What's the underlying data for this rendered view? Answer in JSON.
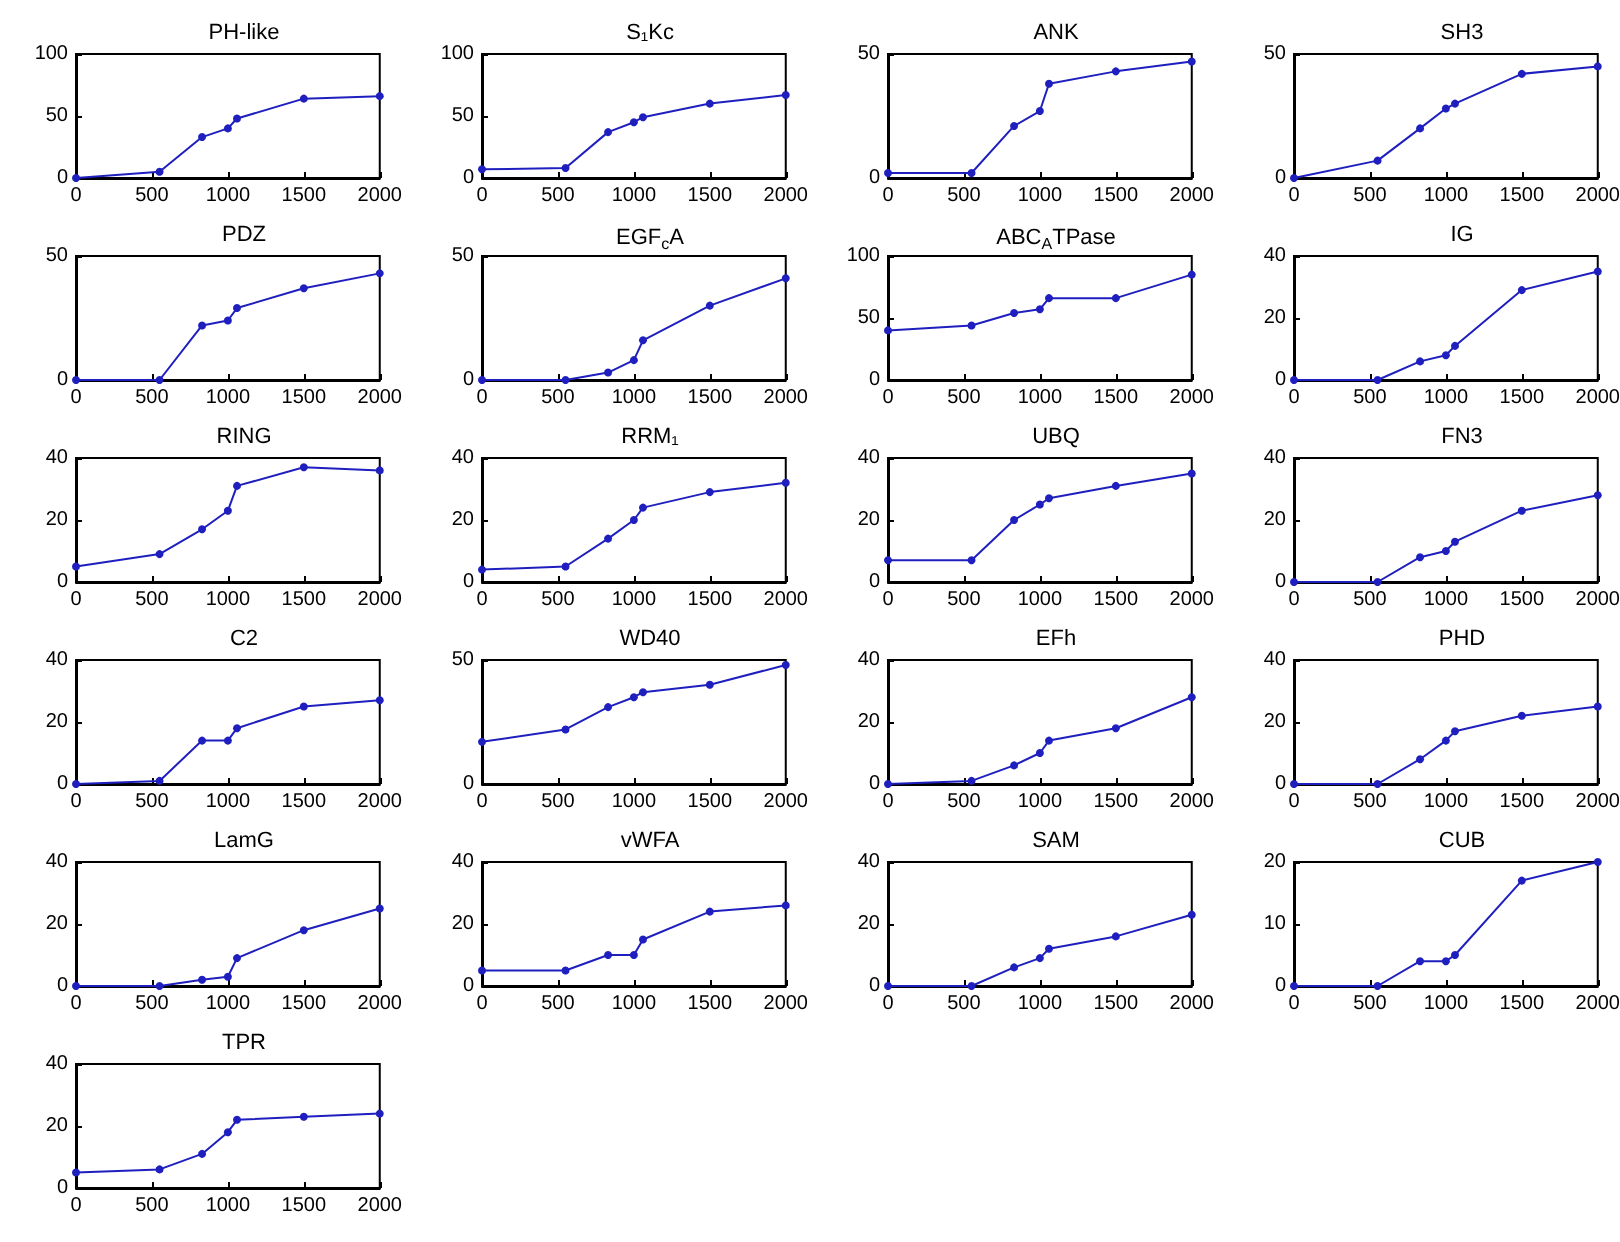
{
  "chart_data": [
    {
      "type": "line",
      "title": "PH-like",
      "x": [
        0,
        550,
        830,
        1000,
        1060,
        1500,
        2000
      ],
      "series": [
        {
          "color": "#1f1fbf",
          "values": [
            0,
            5,
            33,
            40,
            48,
            64,
            66
          ]
        }
      ],
      "xlim": [
        0,
        2000
      ],
      "xticks": [
        0,
        500,
        1000,
        1500,
        2000
      ],
      "ylim": [
        0,
        100
      ],
      "yticks": [
        0,
        50,
        100
      ],
      "marker": "circle",
      "line_style": "solid"
    },
    {
      "type": "line",
      "title": "S₁Kc",
      "x": [
        0,
        550,
        830,
        1000,
        1060,
        1500,
        2000
      ],
      "series": [
        {
          "color": "#1f1fbf",
          "values": [
            7,
            8,
            37,
            45,
            49,
            60,
            67
          ]
        }
      ],
      "xlim": [
        0,
        2000
      ],
      "xticks": [
        0,
        500,
        1000,
        1500,
        2000
      ],
      "ylim": [
        0,
        100
      ],
      "yticks": [
        0,
        50,
        100
      ],
      "marker": "circle",
      "line_style": "solid"
    },
    {
      "type": "line",
      "title": "ANK",
      "x": [
        0,
        550,
        830,
        1000,
        1060,
        1500,
        2000
      ],
      "series": [
        {
          "color": "#1f1fbf",
          "values": [
            2,
            2,
            21,
            27,
            38,
            43,
            47
          ]
        }
      ],
      "xlim": [
        0,
        2000
      ],
      "xticks": [
        0,
        500,
        1000,
        1500,
        2000
      ],
      "ylim": [
        0,
        50
      ],
      "yticks": [
        0,
        50
      ],
      "marker": "circle",
      "line_style": "solid"
    },
    {
      "type": "line",
      "title": "SH3",
      "x": [
        0,
        550,
        830,
        1000,
        1060,
        1500,
        2000
      ],
      "series": [
        {
          "color": "#1f1fbf",
          "values": [
            0,
            7,
            20,
            28,
            30,
            42,
            45
          ]
        }
      ],
      "xlim": [
        0,
        2000
      ],
      "xticks": [
        0,
        500,
        1000,
        1500,
        2000
      ],
      "ylim": [
        0,
        50
      ],
      "yticks": [
        0,
        50
      ],
      "marker": "circle",
      "line_style": "solid"
    },
    {
      "type": "line",
      "title": "PDZ",
      "x": [
        0,
        550,
        830,
        1000,
        1060,
        1500,
        2000
      ],
      "series": [
        {
          "color": "#1f1fbf",
          "values": [
            0,
            0,
            22,
            24,
            29,
            37,
            43
          ]
        }
      ],
      "xlim": [
        0,
        2000
      ],
      "xticks": [
        0,
        500,
        1000,
        1500,
        2000
      ],
      "ylim": [
        0,
        50
      ],
      "yticks": [
        0,
        50
      ],
      "marker": "circle",
      "line_style": "solid"
    },
    {
      "type": "line",
      "title": "EGF$_{c}$A",
      "x": [
        0,
        550,
        830,
        1000,
        1060,
        1500,
        2000
      ],
      "series": [
        {
          "color": "#1f1fbf",
          "values": [
            0,
            0,
            3,
            8,
            16,
            30,
            41
          ]
        }
      ],
      "xlim": [
        0,
        2000
      ],
      "xticks": [
        0,
        500,
        1000,
        1500,
        2000
      ],
      "ylim": [
        0,
        50
      ],
      "yticks": [
        0,
        50
      ],
      "marker": "circle",
      "line_style": "solid"
    },
    {
      "type": "line",
      "title": "ABC$_{A}$TPase",
      "x": [
        0,
        550,
        830,
        1000,
        1060,
        1500,
        2000
      ],
      "series": [
        {
          "color": "#1f1fbf",
          "values": [
            40,
            44,
            54,
            57,
            66,
            66,
            85
          ]
        }
      ],
      "xlim": [
        0,
        2000
      ],
      "xticks": [
        0,
        500,
        1000,
        1500,
        2000
      ],
      "ylim": [
        0,
        100
      ],
      "yticks": [
        0,
        50,
        100
      ],
      "marker": "circle",
      "line_style": "solid"
    },
    {
      "type": "line",
      "title": "IG",
      "x": [
        0,
        550,
        830,
        1000,
        1060,
        1500,
        2000
      ],
      "series": [
        {
          "color": "#1f1fbf",
          "values": [
            0,
            0,
            6,
            8,
            11,
            29,
            35
          ]
        }
      ],
      "xlim": [
        0,
        2000
      ],
      "xticks": [
        0,
        500,
        1000,
        1500,
        2000
      ],
      "ylim": [
        0,
        40
      ],
      "yticks": [
        0,
        20,
        40
      ],
      "marker": "circle",
      "line_style": "solid"
    },
    {
      "type": "line",
      "title": "RING",
      "x": [
        0,
        550,
        830,
        1000,
        1060,
        1500,
        2000
      ],
      "series": [
        {
          "color": "#1f1fbf",
          "values": [
            5,
            9,
            17,
            23,
            31,
            37,
            36
          ]
        }
      ],
      "xlim": [
        0,
        2000
      ],
      "xticks": [
        0,
        500,
        1000,
        1500,
        2000
      ],
      "ylim": [
        0,
        40
      ],
      "yticks": [
        0,
        20,
        40
      ],
      "marker": "circle",
      "line_style": "solid"
    },
    {
      "type": "line",
      "title": "RRM₁",
      "x": [
        0,
        550,
        830,
        1000,
        1060,
        1500,
        2000
      ],
      "series": [
        {
          "color": "#1f1fbf",
          "values": [
            4,
            5,
            14,
            20,
            24,
            29,
            32
          ]
        }
      ],
      "xlim": [
        0,
        2000
      ],
      "xticks": [
        0,
        500,
        1000,
        1500,
        2000
      ],
      "ylim": [
        0,
        40
      ],
      "yticks": [
        0,
        20,
        40
      ],
      "marker": "circle",
      "line_style": "solid"
    },
    {
      "type": "line",
      "title": "UBQ",
      "x": [
        0,
        550,
        830,
        1000,
        1060,
        1500,
        2000
      ],
      "series": [
        {
          "color": "#1f1fbf",
          "values": [
            7,
            7,
            20,
            25,
            27,
            31,
            35
          ]
        }
      ],
      "xlim": [
        0,
        2000
      ],
      "xticks": [
        0,
        500,
        1000,
        1500,
        2000
      ],
      "ylim": [
        0,
        40
      ],
      "yticks": [
        0,
        20,
        40
      ],
      "marker": "circle",
      "line_style": "solid"
    },
    {
      "type": "line",
      "title": "FN3",
      "x": [
        0,
        550,
        830,
        1000,
        1060,
        1500,
        2000
      ],
      "series": [
        {
          "color": "#1f1fbf",
          "values": [
            0,
            0,
            8,
            10,
            13,
            23,
            28
          ]
        }
      ],
      "xlim": [
        0,
        2000
      ],
      "xticks": [
        0,
        500,
        1000,
        1500,
        2000
      ],
      "ylim": [
        0,
        40
      ],
      "yticks": [
        0,
        20,
        40
      ],
      "marker": "circle",
      "line_style": "solid"
    },
    {
      "type": "line",
      "title": "C2",
      "x": [
        0,
        550,
        830,
        1000,
        1060,
        1500,
        2000
      ],
      "series": [
        {
          "color": "#1f1fbf",
          "values": [
            0,
            1,
            14,
            14,
            18,
            25,
            27
          ]
        }
      ],
      "xlim": [
        0,
        2000
      ],
      "xticks": [
        0,
        500,
        1000,
        1500,
        2000
      ],
      "ylim": [
        0,
        40
      ],
      "yticks": [
        0,
        20,
        40
      ],
      "marker": "circle",
      "line_style": "solid"
    },
    {
      "type": "line",
      "title": "WD40",
      "x": [
        0,
        550,
        830,
        1000,
        1060,
        1500,
        2000
      ],
      "series": [
        {
          "color": "#1f1fbf",
          "values": [
            17,
            22,
            31,
            35,
            37,
            40,
            48
          ]
        }
      ],
      "xlim": [
        0,
        2000
      ],
      "xticks": [
        0,
        500,
        1000,
        1500,
        2000
      ],
      "ylim": [
        0,
        50
      ],
      "yticks": [
        0,
        50
      ],
      "marker": "circle",
      "line_style": "solid"
    },
    {
      "type": "line",
      "title": "EFh",
      "x": [
        0,
        550,
        830,
        1000,
        1060,
        1500,
        2000
      ],
      "series": [
        {
          "color": "#1f1fbf",
          "values": [
            0,
            1,
            6,
            10,
            14,
            18,
            28
          ]
        }
      ],
      "xlim": [
        0,
        2000
      ],
      "xticks": [
        0,
        500,
        1000,
        1500,
        2000
      ],
      "ylim": [
        0,
        40
      ],
      "yticks": [
        0,
        20,
        40
      ],
      "marker": "circle",
      "line_style": "solid"
    },
    {
      "type": "line",
      "title": "PHD",
      "x": [
        0,
        550,
        830,
        1000,
        1060,
        1500,
        2000
      ],
      "series": [
        {
          "color": "#1f1fbf",
          "values": [
            0,
            0,
            8,
            14,
            17,
            22,
            25
          ]
        }
      ],
      "xlim": [
        0,
        2000
      ],
      "xticks": [
        0,
        500,
        1000,
        1500,
        2000
      ],
      "ylim": [
        0,
        40
      ],
      "yticks": [
        0,
        20,
        40
      ],
      "marker": "circle",
      "line_style": "solid"
    },
    {
      "type": "line",
      "title": "LamG",
      "x": [
        0,
        550,
        830,
        1000,
        1060,
        1500,
        2000
      ],
      "series": [
        {
          "color": "#1f1fbf",
          "values": [
            0,
            0,
            2,
            3,
            9,
            18,
            25
          ]
        }
      ],
      "xlim": [
        0,
        2000
      ],
      "xticks": [
        0,
        500,
        1000,
        1500,
        2000
      ],
      "ylim": [
        0,
        40
      ],
      "yticks": [
        0,
        20,
        40
      ],
      "marker": "circle",
      "line_style": "solid"
    },
    {
      "type": "line",
      "title": "vWFA",
      "x": [
        0,
        550,
        830,
        1000,
        1060,
        1500,
        2000
      ],
      "series": [
        {
          "color": "#1f1fbf",
          "values": [
            5,
            5,
            10,
            10,
            15,
            24,
            26
          ]
        }
      ],
      "xlim": [
        0,
        2000
      ],
      "xticks": [
        0,
        500,
        1000,
        1500,
        2000
      ],
      "ylim": [
        0,
        40
      ],
      "yticks": [
        0,
        20,
        40
      ],
      "marker": "circle",
      "line_style": "solid"
    },
    {
      "type": "line",
      "title": "SAM",
      "x": [
        0,
        550,
        830,
        1000,
        1060,
        1500,
        2000
      ],
      "series": [
        {
          "color": "#1f1fbf",
          "values": [
            0,
            0,
            6,
            9,
            12,
            16,
            23
          ]
        }
      ],
      "xlim": [
        0,
        2000
      ],
      "xticks": [
        0,
        500,
        1000,
        1500,
        2000
      ],
      "ylim": [
        0,
        40
      ],
      "yticks": [
        0,
        20,
        40
      ],
      "marker": "circle",
      "line_style": "solid"
    },
    {
      "type": "line",
      "title": "CUB",
      "x": [
        0,
        550,
        830,
        1000,
        1060,
        1500,
        2000
      ],
      "series": [
        {
          "color": "#1f1fbf",
          "values": [
            0,
            0,
            4,
            4,
            5,
            17,
            20
          ]
        }
      ],
      "xlim": [
        0,
        2000
      ],
      "xticks": [
        0,
        500,
        1000,
        1500,
        2000
      ],
      "ylim": [
        0,
        20
      ],
      "yticks": [
        0,
        10,
        20
      ],
      "marker": "circle",
      "line_style": "solid"
    },
    {
      "type": "line",
      "title": "TPR",
      "x": [
        0,
        550,
        830,
        1000,
        1060,
        1500,
        2000
      ],
      "series": [
        {
          "color": "#1f1fbf",
          "values": [
            5,
            6,
            11,
            18,
            22,
            23,
            24
          ]
        }
      ],
      "xlim": [
        0,
        2000
      ],
      "xticks": [
        0,
        500,
        1000,
        1500,
        2000
      ],
      "ylim": [
        0,
        40
      ],
      "yticks": [
        0,
        20,
        40
      ],
      "marker": "circle",
      "line_style": "solid"
    }
  ]
}
